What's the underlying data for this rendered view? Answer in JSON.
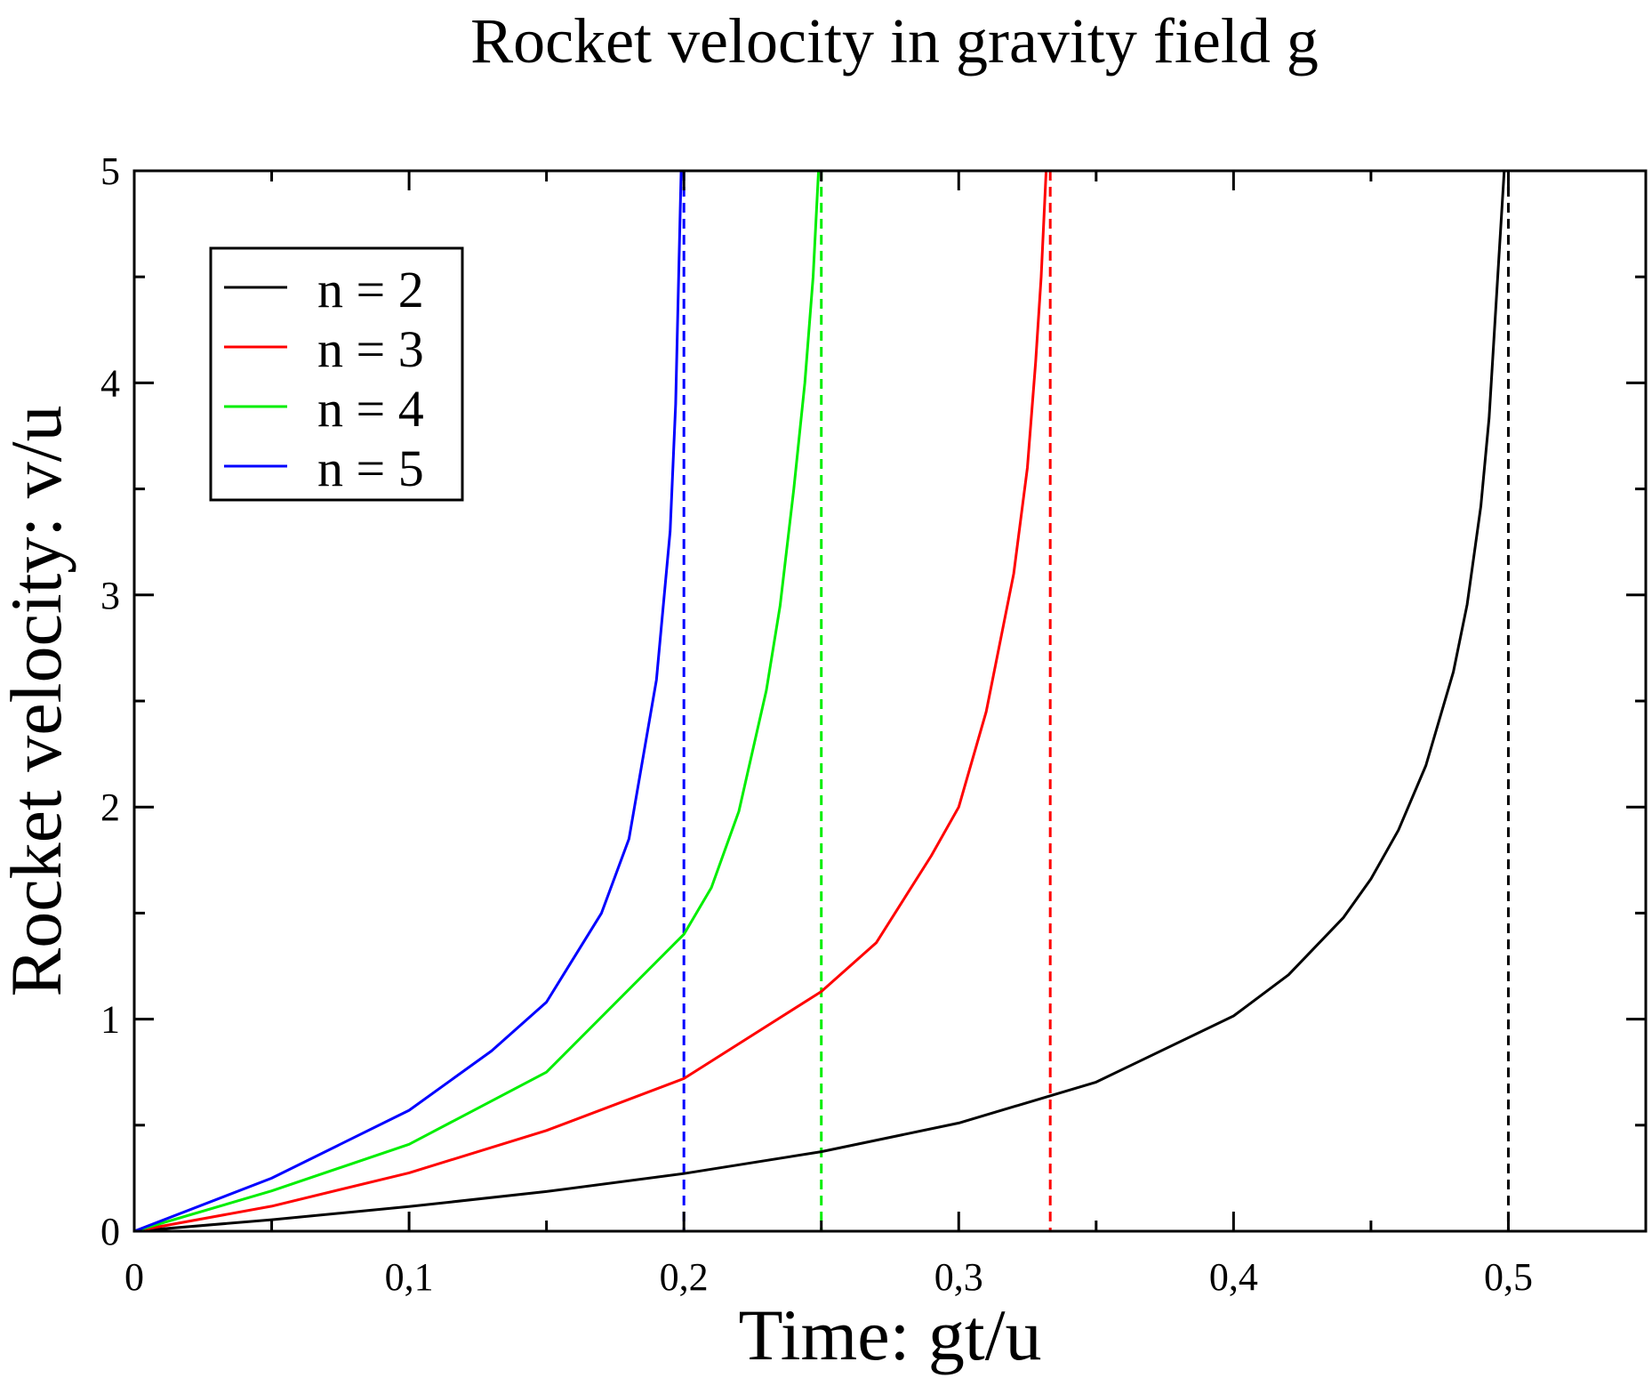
{
  "chart_data": {
    "type": "line",
    "title": "Rocket velocity in gravity field g",
    "xlabel": "Time: gt/u",
    "ylabel": "Rocket velocity: v/u",
    "xlim": [
      0,
      0.55
    ],
    "ylim": [
      0,
      5
    ],
    "x_ticks": [
      0,
      0.1,
      0.2,
      0.3,
      0.4,
      0.5
    ],
    "x_tick_labels": [
      "0",
      "0,1",
      "0,2",
      "0,3",
      "0,4",
      "0,5"
    ],
    "x_minor_ticks": [
      0.05,
      0.15,
      0.25,
      0.35,
      0.45,
      0.55
    ],
    "y_ticks": [
      0,
      1,
      2,
      3,
      4,
      5
    ],
    "y_tick_labels": [
      "0",
      "1",
      "2",
      "3",
      "4",
      "5"
    ],
    "y_minor_ticks": [
      0.5,
      1.5,
      2.5,
      3.5,
      4.5
    ],
    "grid": false,
    "legend_position": "top-left",
    "series": [
      {
        "name": "n = 2",
        "color": "#000000",
        "x": [
          0,
          0.05,
          0.1,
          0.15,
          0.2,
          0.25,
          0.3,
          0.35,
          0.4,
          0.42,
          0.44,
          0.45,
          0.46,
          0.47,
          0.48,
          0.485,
          0.49,
          0.493,
          0.496,
          0.4985
        ],
        "y": [
          0,
          0.054,
          0.116,
          0.187,
          0.272,
          0.375,
          0.51,
          0.703,
          1.015,
          1.209,
          1.479,
          1.661,
          1.891,
          2.196,
          2.637,
          2.955,
          3.418,
          3.835,
          4.474,
          5.0
        ],
        "asymptote_x": 0.5
      },
      {
        "name": "n = 3",
        "color": "#ff0000",
        "x": [
          0,
          0.05,
          0.1,
          0.15,
          0.2,
          0.25,
          0.27,
          0.29,
          0.3,
          0.31,
          0.32,
          0.325,
          0.328,
          0.33,
          0.3318
        ],
        "y": [
          0,
          0.118,
          0.275,
          0.475,
          0.72,
          1.13,
          1.36,
          1.77,
          2.0,
          2.45,
          3.1,
          3.6,
          4.1,
          4.5,
          5.0
        ],
        "asymptote_x": 0.3333
      },
      {
        "name": "n = 4",
        "color": "#00ee00",
        "x": [
          0,
          0.05,
          0.1,
          0.15,
          0.2,
          0.21,
          0.22,
          0.23,
          0.235,
          0.24,
          0.244,
          0.247,
          0.249
        ],
        "y": [
          0,
          0.19,
          0.41,
          0.75,
          1.4,
          1.62,
          1.98,
          2.55,
          2.95,
          3.5,
          4.0,
          4.5,
          5.0
        ],
        "asymptote_x": 0.25
      },
      {
        "name": "n = 5",
        "color": "#0000ff",
        "x": [
          0,
          0.05,
          0.1,
          0.13,
          0.15,
          0.17,
          0.18,
          0.19,
          0.195,
          0.197,
          0.199
        ],
        "y": [
          0,
          0.25,
          0.57,
          0.85,
          1.08,
          1.5,
          1.85,
          2.6,
          3.3,
          3.9,
          5.0
        ],
        "asymptote_x": 0.2
      }
    ]
  }
}
